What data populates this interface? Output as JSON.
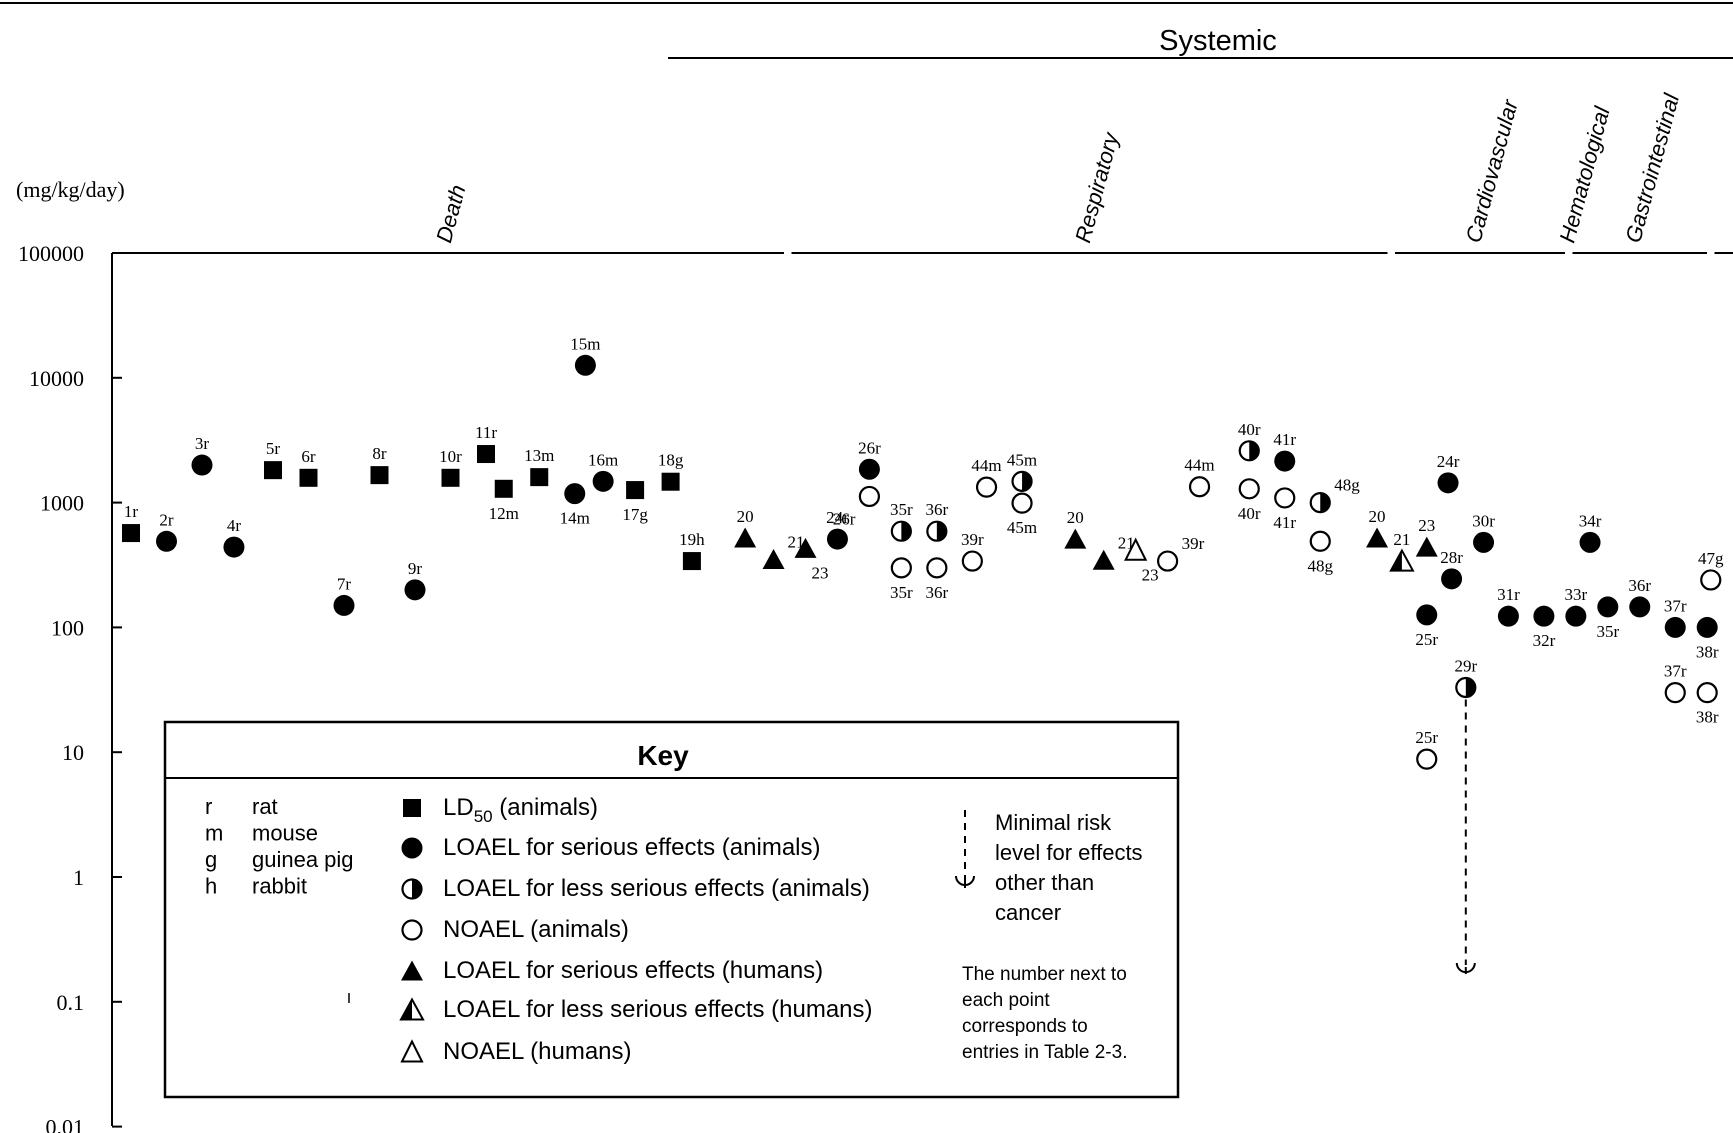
{
  "chart_data": {
    "type": "scatter",
    "unit_label": "(mg/kg/day)",
    "scale": "log",
    "ylim": [
      0.01,
      100000
    ],
    "y_ticks": [
      "100000",
      "10000",
      "1000",
      "100",
      "10",
      "1",
      "0.1",
      "0.01"
    ],
    "systemic_header": "Systemic",
    "categories": [
      {
        "name": "Death",
        "x_range": [
          1,
          19
        ]
      },
      {
        "name": "Respiratory",
        "x_range": [
          20,
          36
        ]
      },
      {
        "name": "Cardiovascular",
        "x_range": [
          37,
          41
        ]
      },
      {
        "name": "Gastrointestinal",
        "x_range": [
          42,
          45
        ]
      },
      {
        "name": "Hematological",
        "x_range": [
          46,
          58
        ]
      }
    ],
    "points": [
      {
        "pos": 1,
        "value": 570,
        "type": "LD50",
        "label": "1r",
        "lp": "above"
      },
      {
        "pos": 2,
        "value": 490,
        "type": "LOAEL_serious_animal",
        "label": "2r",
        "lp": "above"
      },
      {
        "pos": 3,
        "value": 2000,
        "type": "LOAEL_serious_animal",
        "label": "3r",
        "lp": "above"
      },
      {
        "pos": 3.9,
        "value": 440,
        "type": "LOAEL_serious_animal",
        "label": "4r",
        "lp": "above"
      },
      {
        "pos": 5,
        "value": 1820,
        "type": "LD50",
        "label": "5r",
        "lp": "above"
      },
      {
        "pos": 6,
        "value": 1580,
        "type": "LD50",
        "label": "6r",
        "lp": "above"
      },
      {
        "pos": 7,
        "value": 150,
        "type": "LOAEL_serious_animal",
        "label": "7r",
        "lp": "above"
      },
      {
        "pos": 8,
        "value": 1660,
        "type": "LD50",
        "label": "8r",
        "lp": "above"
      },
      {
        "pos": 9,
        "value": 200,
        "type": "LOAEL_serious_animal",
        "label": "9r",
        "lp": "above"
      },
      {
        "pos": 10,
        "value": 1580,
        "type": "LD50",
        "label": "10r",
        "lp": "above"
      },
      {
        "pos": 11,
        "value": 2450,
        "type": "LD50",
        "label": "11r",
        "lp": "above"
      },
      {
        "pos": 11.5,
        "value": 1290,
        "type": "LD50",
        "label": "12m",
        "lp": "below"
      },
      {
        "pos": 12.5,
        "value": 1600,
        "type": "LD50",
        "label": "13m",
        "lp": "above"
      },
      {
        "pos": 13.5,
        "value": 1180,
        "type": "LOAEL_serious_animal",
        "label": "14m",
        "lp": "below"
      },
      {
        "pos": 13.8,
        "value": 12600,
        "type": "LOAEL_serious_animal",
        "label": "15m",
        "lp": "above"
      },
      {
        "pos": 14.3,
        "value": 1480,
        "type": "LOAEL_serious_animal",
        "label": "16m",
        "lp": "above"
      },
      {
        "pos": 15.2,
        "value": 1260,
        "type": "LD50",
        "label": "17g",
        "lp": "below"
      },
      {
        "pos": 16.2,
        "value": 1470,
        "type": "LD50",
        "label": "18g",
        "lp": "above"
      },
      {
        "pos": 16.8,
        "value": 340,
        "type": "LD50",
        "label": "19h",
        "lp": "above"
      },
      {
        "pos": 18.3,
        "value": 520,
        "type": "LOAEL_serious_human",
        "label": "20",
        "lp": "above"
      },
      {
        "pos": 19.1,
        "value": 350,
        "type": "LOAEL_serious_human",
        "label": "21",
        "lp": "aboveright"
      },
      {
        "pos": 20,
        "value": 430,
        "type": "LOAEL_serious_human",
        "label": "23",
        "lp": "belowright"
      },
      {
        "pos": 20.9,
        "value": 510,
        "type": "LOAEL_serious_animal",
        "label": "24r",
        "lp": "above"
      },
      {
        "pos": 21.8,
        "value": 1850,
        "type": "LOAEL_serious_animal",
        "label": "26r",
        "lp": "above"
      },
      {
        "pos": 21.8,
        "value": 1120,
        "type": "NOAEL_animal",
        "label": "26r",
        "lp": "belowleft"
      },
      {
        "pos": 22.7,
        "value": 590,
        "type": "LOAEL_less_serious_animal",
        "label": "35r",
        "lp": "above"
      },
      {
        "pos": 22.7,
        "value": 300,
        "type": "NOAEL_animal",
        "label": "35r",
        "lp": "below"
      },
      {
        "pos": 23.7,
        "value": 590,
        "type": "LOAEL_less_serious_animal",
        "label": "36r",
        "lp": "above"
      },
      {
        "pos": 23.7,
        "value": 300,
        "type": "NOAEL_animal",
        "label": "36r",
        "lp": "below"
      },
      {
        "pos": 24.7,
        "value": 340,
        "type": "NOAEL_animal",
        "label": "39r",
        "lp": "above"
      },
      {
        "pos": 25.1,
        "value": 1330,
        "type": "NOAEL_animal",
        "label": "44m",
        "lp": "above"
      },
      {
        "pos": 26.1,
        "value": 1480,
        "type": "LOAEL_less_serious_animal",
        "label": "45m",
        "lp": "above"
      },
      {
        "pos": 26.1,
        "value": 990,
        "type": "NOAEL_animal",
        "label": "45m",
        "lp": "below"
      },
      {
        "pos": 27.6,
        "value": 510,
        "type": "LOAEL_serious_human",
        "label": "20",
        "lp": "above"
      },
      {
        "pos": 28.4,
        "value": 345,
        "type": "LOAEL_serious_human",
        "label": "21",
        "lp": "aboveright"
      },
      {
        "pos": 29.3,
        "value": 415,
        "type": "NOAEL_human",
        "label": "23",
        "lp": "belowright"
      },
      {
        "pos": 30.2,
        "value": 340,
        "type": "NOAEL_animal",
        "label": "39r",
        "lp": "aboveright"
      },
      {
        "pos": 31.1,
        "value": 1340,
        "type": "NOAEL_animal",
        "label": "44m",
        "lp": "above"
      },
      {
        "pos": 32.5,
        "value": 2600,
        "type": "LOAEL_less_serious_animal",
        "label": "40r",
        "lp": "above"
      },
      {
        "pos": 32.5,
        "value": 1290,
        "type": "NOAEL_animal",
        "label": "40r",
        "lp": "below"
      },
      {
        "pos": 33.5,
        "value": 2150,
        "type": "LOAEL_serious_animal",
        "label": "41r",
        "lp": "above"
      },
      {
        "pos": 33.5,
        "value": 1090,
        "type": "NOAEL_animal",
        "label": "41r",
        "lp": "below"
      },
      {
        "pos": 34.5,
        "value": 1000,
        "type": "LOAEL_less_serious_animal",
        "label": "48g",
        "lp": "aboveright"
      },
      {
        "pos": 34.5,
        "value": 490,
        "type": "NOAEL_animal",
        "label": "48g",
        "lp": "below"
      },
      {
        "pos": 36.1,
        "value": 520,
        "type": "LOAEL_serious_human",
        "label": "20",
        "lp": "above"
      },
      {
        "pos": 36.8,
        "value": 340,
        "type": "LOAEL_less_serious_human",
        "label": "21",
        "lp": "above"
      },
      {
        "pos": 37.5,
        "value": 440,
        "type": "LOAEL_serious_human",
        "label": "23",
        "lp": "above"
      },
      {
        "pos": 38.1,
        "value": 1440,
        "type": "LOAEL_serious_animal",
        "label": "24r",
        "lp": "above"
      },
      {
        "pos": 37.5,
        "value": 126,
        "type": "LOAEL_serious_animal",
        "label": "25r",
        "lp": "below"
      },
      {
        "pos": 37.5,
        "value": 8.8,
        "type": "NOAEL_animal",
        "label": "25r",
        "lp": "above"
      },
      {
        "pos": 38.2,
        "value": 245,
        "type": "LOAEL_serious_animal",
        "label": "28r",
        "lp": "above"
      },
      {
        "pos": 38.6,
        "value": 33,
        "type": "LOAEL_less_serious_animal",
        "label": "29r",
        "lp": "above",
        "mrl": 0.17
      },
      {
        "pos": 39.1,
        "value": 480,
        "type": "LOAEL_serious_animal",
        "label": "30r",
        "lp": "above"
      },
      {
        "pos": 39.8,
        "value": 123,
        "type": "LOAEL_serious_animal",
        "label": "31r",
        "lp": "above"
      },
      {
        "pos": 40.8,
        "value": 123,
        "type": "LOAEL_serious_animal",
        "label": "32r",
        "lp": "below"
      },
      {
        "pos": 41.7,
        "value": 123,
        "type": "LOAEL_serious_animal",
        "label": "33r",
        "lp": "above"
      },
      {
        "pos": 42.1,
        "value": 480,
        "type": "LOAEL_serious_animal",
        "label": "34r",
        "lp": "above"
      },
      {
        "pos": 42.6,
        "value": 146,
        "type": "LOAEL_serious_animal",
        "label": "35r",
        "lp": "below"
      },
      {
        "pos": 43.5,
        "value": 146,
        "type": "LOAEL_serious_animal",
        "label": "36r",
        "lp": "above"
      },
      {
        "pos": 44.5,
        "value": 100,
        "type": "LOAEL_serious_animal",
        "label": "37r",
        "lp": "above"
      },
      {
        "pos": 44.5,
        "value": 30,
        "type": "NOAEL_animal",
        "label": "37r",
        "lp": "above"
      },
      {
        "pos": 45.4,
        "value": 100,
        "type": "LOAEL_serious_animal",
        "label": "38r",
        "lp": "below"
      },
      {
        "pos": 45.4,
        "value": 30,
        "type": "NOAEL_animal",
        "label": "38r",
        "lp": "below"
      },
      {
        "pos": 45.5,
        "value": 240,
        "type": "NOAEL_animal",
        "label": "47g",
        "lp": "above"
      }
    ]
  },
  "key": {
    "title": "Key",
    "species": [
      {
        "abbr": "r",
        "name": "rat"
      },
      {
        "abbr": "m",
        "name": "mouse"
      },
      {
        "abbr": "g",
        "name": "guinea pig"
      },
      {
        "abbr": "h",
        "name": "rabbit"
      }
    ],
    "symbols": [
      {
        "type": "LD50",
        "label": "LD",
        "sub": "50",
        "suffix": " (animals)"
      },
      {
        "type": "LOAEL_serious_animal",
        "label": "LOAEL for serious effects (animals)"
      },
      {
        "type": "LOAEL_less_serious_animal",
        "label": "LOAEL for less serious effects (animals)"
      },
      {
        "type": "NOAEL_animal",
        "label": "NOAEL (animals)"
      },
      {
        "type": "LOAEL_serious_human",
        "label": "LOAEL for serious effects (humans)"
      },
      {
        "type": "LOAEL_less_serious_human",
        "label": "LOAEL for less serious effects (humans)"
      },
      {
        "type": "NOAEL_human",
        "label": "NOAEL (humans)"
      }
    ],
    "mrl_lines": [
      "Minimal risk",
      "level for effects",
      "other than",
      "cancer"
    ],
    "note_lines": [
      "The number next to",
      "each point",
      "corresponds to",
      "entries in Table 2-3."
    ]
  }
}
